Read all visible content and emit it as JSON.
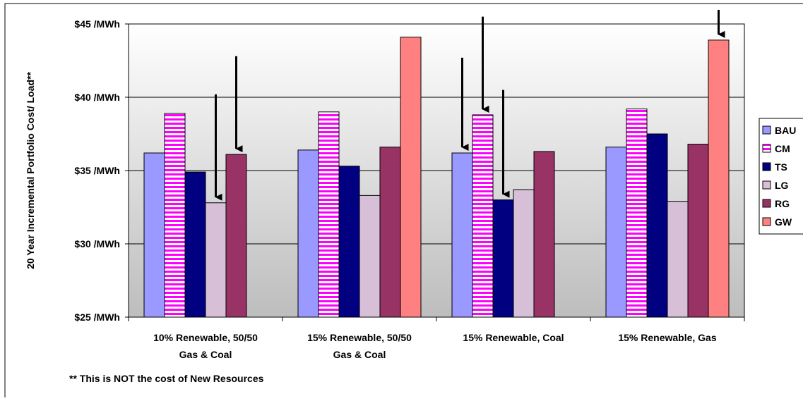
{
  "chart_data": {
    "type": "bar",
    "title": "",
    "xlabel": "",
    "ylabel": "20 Year Incremental Portfolio Cost/ Load**",
    "ylim": [
      25,
      45
    ],
    "yticks": [
      25,
      30,
      35,
      40,
      45
    ],
    "ytick_labels": [
      "$25 /MWh",
      "$30 /MWh",
      "$35 /MWh",
      "$40 /MWh",
      "$45 /MWh"
    ],
    "grid": true,
    "legend_position": "right",
    "categories": [
      [
        "10% Renewable, 50/50",
        "Gas & Coal"
      ],
      [
        "15% Renewable, 50/50",
        "Gas & Coal"
      ],
      [
        "15% Renewable, Coal"
      ],
      [
        "15% Renewable, Gas"
      ]
    ],
    "series": [
      {
        "name": "BAU",
        "color": "#9999ff",
        "pattern": "solid",
        "values": [
          36.2,
          36.4,
          36.2,
          36.6
        ]
      },
      {
        "name": "CM",
        "color": "#ff00ff",
        "pattern": "horizontal-stripes",
        "values": [
          38.9,
          39.0,
          38.8,
          39.2
        ]
      },
      {
        "name": "TS",
        "color": "#000080",
        "pattern": "solid",
        "values": [
          34.9,
          35.3,
          33.0,
          37.5
        ]
      },
      {
        "name": "LG",
        "color": "#d8bfd8",
        "pattern": "solid",
        "values": [
          32.8,
          33.3,
          33.7,
          32.9
        ]
      },
      {
        "name": "RG",
        "color": "#993366",
        "pattern": "solid",
        "values": [
          36.1,
          36.6,
          36.3,
          36.8
        ]
      },
      {
        "name": "GW",
        "color": "#ff8080",
        "pattern": "solid",
        "values": [
          null,
          44.1,
          null,
          43.9
        ]
      }
    ],
    "annotations": {
      "footnote": "** This is NOT the cost of New Resources",
      "arrows": [
        {
          "category": 0,
          "series": "LG",
          "from": 40.2
        },
        {
          "category": 0,
          "series": "RG",
          "from": 42.8
        },
        {
          "category": 2,
          "series": "BAU",
          "from": 42.7
        },
        {
          "category": 2,
          "series": "CM",
          "from": 45.5
        },
        {
          "category": 2,
          "series": "TS",
          "from": 40.5
        },
        {
          "category": 3,
          "series": "GW",
          "from": 46.0
        }
      ]
    }
  }
}
